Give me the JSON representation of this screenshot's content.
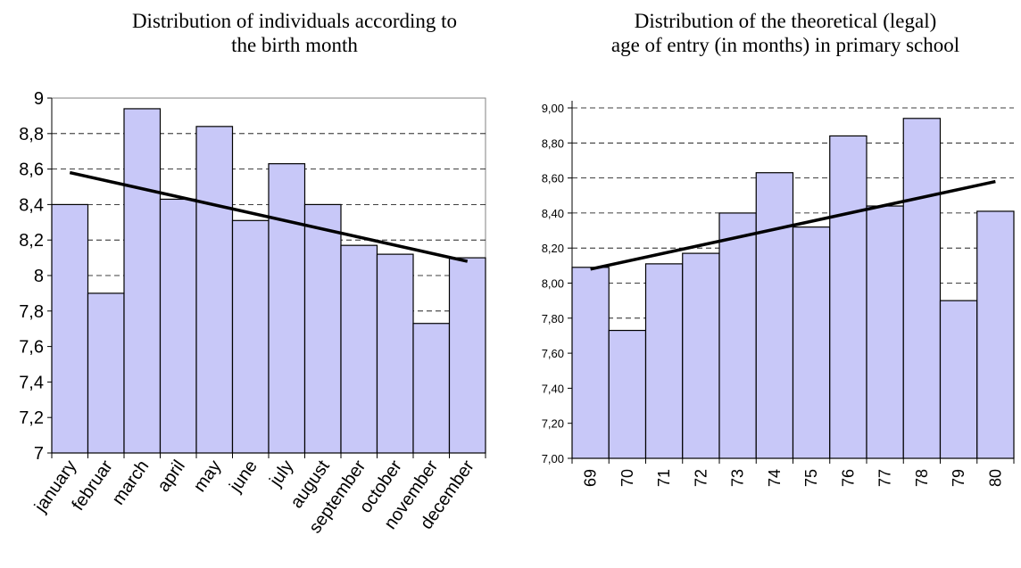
{
  "colors": {
    "bar_fill": "#c8c8f8",
    "bar_stroke": "#000000",
    "trend": "#000000",
    "grid": "#000000"
  },
  "chart_data": [
    {
      "type": "bar",
      "title": "Distribution of individuals according to the birth month",
      "title_lines": [
        "Distribution of individuals according to",
        "the birth month"
      ],
      "xlabel": "",
      "ylabel": "",
      "categories": [
        "january",
        "februar",
        "march",
        "april",
        "may",
        "june",
        "july",
        "august",
        "september",
        "october",
        "november",
        "december"
      ],
      "values": [
        8.4,
        7.9,
        8.94,
        8.43,
        8.84,
        8.31,
        8.63,
        8.4,
        8.17,
        8.12,
        7.73,
        8.1
      ],
      "trendline": {
        "start": 8.58,
        "end": 8.08
      },
      "ylim": [
        7,
        9
      ],
      "yticks": [
        "7",
        "7,2",
        "7,4",
        "7,6",
        "7,8",
        "8",
        "8,2",
        "8,4",
        "8,6",
        "8,8",
        "9"
      ],
      "grid": true,
      "grid_style": "dashed",
      "legend": "none"
    },
    {
      "type": "bar",
      "title": "Distribution of the theoretical (legal) age of entry (in months) in primary school",
      "title_lines": [
        "Distribution of the theoretical (legal)",
        "age of entry (in months) in primary school"
      ],
      "xlabel": "",
      "ylabel": "",
      "categories": [
        "69",
        "70",
        "71",
        "72",
        "73",
        "74",
        "75",
        "76",
        "77",
        "78",
        "79",
        "80"
      ],
      "values": [
        8.09,
        7.73,
        8.11,
        8.17,
        8.4,
        8.63,
        8.32,
        8.84,
        8.44,
        8.94,
        7.9,
        8.41
      ],
      "trendline": {
        "start": 8.08,
        "end": 8.58
      },
      "ylim": [
        7,
        9
      ],
      "yticks": [
        "7,00",
        "7,20",
        "7,40",
        "7,60",
        "7,80",
        "8,00",
        "8,20",
        "8,40",
        "8,60",
        "8,80",
        "9,00"
      ],
      "grid": true,
      "grid_style": "dashed",
      "legend": "none"
    }
  ]
}
